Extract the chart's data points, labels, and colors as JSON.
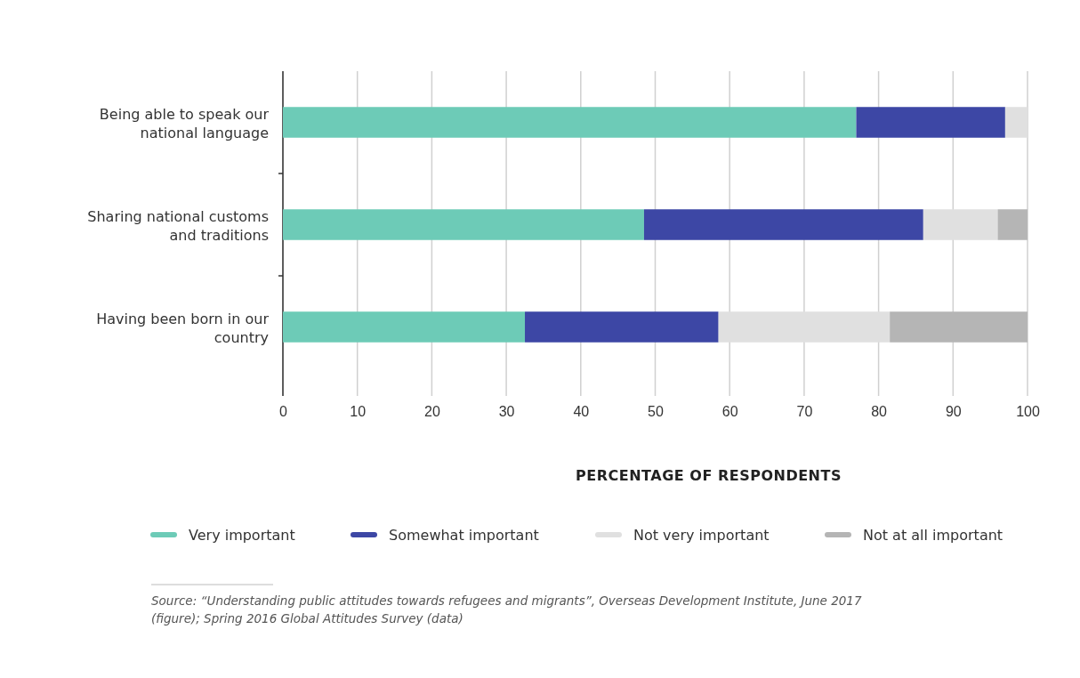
{
  "chart_data": {
    "type": "bar",
    "orientation": "horizontal",
    "stacked": true,
    "categories": [
      "Being able to speak our national language",
      "Sharing national customs and traditions",
      "Having been born in our country"
    ],
    "series": [
      {
        "name": "Very important",
        "color": "#6dcbb7",
        "values": [
          77,
          48.5,
          32.5
        ]
      },
      {
        "name": "Somewhat important",
        "color": "#3d47a5",
        "values": [
          20,
          37.5,
          26
        ]
      },
      {
        "name": "Not very important",
        "color": "#e0e0e0",
        "values": [
          3,
          10,
          23
        ]
      },
      {
        "name": "Not at all important",
        "color": "#b5b5b5",
        "values": [
          0,
          4,
          18.5
        ]
      }
    ],
    "xlim": [
      0,
      100
    ],
    "xticks": [
      0,
      10,
      20,
      30,
      40,
      50,
      60,
      70,
      80,
      90,
      100
    ],
    "grid": "x",
    "legend": "bottom",
    "xlabel": "PERCENTAGE OF RESPONDENTS",
    "annotations": [
      "Source: “Understanding public attitudes towards refugees and migrants”, Overseas Development Institute, June 2017 (figure); Spring 2016 Global Attitudes Survey (data)"
    ]
  }
}
